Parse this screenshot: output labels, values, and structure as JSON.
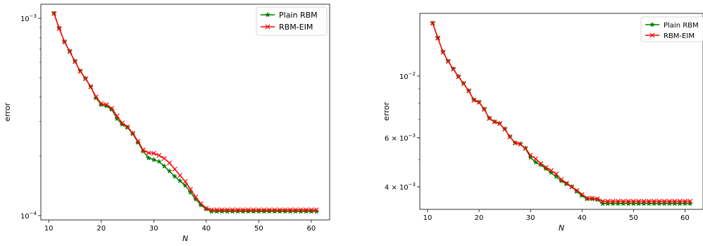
{
  "chart_data": [
    {
      "type": "line",
      "xlabel": "N",
      "ylabel": "error",
      "yscale": "log",
      "xlim": [
        8.5,
        63.5
      ],
      "ylim": [
        9.51e-05,
        0.00118
      ],
      "x_ticks": [
        10,
        20,
        30,
        40,
        50,
        60
      ],
      "y_ticks": [
        {
          "value": 0.001,
          "label": "10",
          "exp": "−3"
        },
        {
          "value": 0.0001,
          "label": "10",
          "exp": "−4"
        }
      ],
      "legend_position": "top-right",
      "x": [
        11,
        12,
        13,
        14,
        15,
        16,
        17,
        18,
        19,
        20,
        21,
        22,
        23,
        24,
        25,
        26,
        27,
        28,
        29,
        30,
        31,
        32,
        33,
        34,
        35,
        36,
        37,
        38,
        39,
        40,
        41,
        42,
        43,
        44,
        45,
        46,
        47,
        48,
        49,
        50,
        51,
        52,
        53,
        54,
        55,
        56,
        57,
        58,
        59,
        60,
        61
      ],
      "series": [
        {
          "name": "Plain RBM",
          "color": "#008000",
          "marker": "star",
          "values": [
            0.00106,
            0.00089,
            0.00076,
            0.00068,
            0.000605,
            0.00054,
            0.000495,
            0.00045,
            0.000395,
            0.000365,
            0.00036,
            0.000345,
            0.00031,
            0.00029,
            0.00028,
            0.00026,
            0.000235,
            0.000212,
            0.000196,
            0.000192,
            0.000188,
            0.000178,
            0.000168,
            0.000158,
            0.00015,
            0.000142,
            0.000131,
            0.000121,
            0.000113,
            0.000108,
            0.000105,
            0.000105,
            0.000105,
            0.000105,
            0.000105,
            0.000105,
            0.000105,
            0.000105,
            0.000105,
            0.000105,
            0.000105,
            0.000105,
            0.000105,
            0.000105,
            0.000105,
            0.000105,
            0.000105,
            0.000105,
            0.000105,
            0.000105,
            0.000105
          ]
        },
        {
          "name": "RBM-EIM",
          "color": "#ff0000",
          "marker": "x",
          "values": [
            0.00106,
            0.00089,
            0.00076,
            0.00068,
            0.000605,
            0.00054,
            0.000495,
            0.00045,
            0.0004,
            0.00037,
            0.000365,
            0.00035,
            0.00032,
            0.000295,
            0.000282,
            0.000262,
            0.000238,
            0.000215,
            0.000208,
            0.000207,
            0.000202,
            0.000195,
            0.000185,
            0.000172,
            0.00016,
            0.000149,
            0.000136,
            0.000124,
            0.000115,
            0.000109,
            0.000107,
            0.000107,
            0.000107,
            0.000107,
            0.000107,
            0.000107,
            0.000107,
            0.000107,
            0.000107,
            0.000107,
            0.000107,
            0.000107,
            0.000107,
            0.000107,
            0.000107,
            0.000107,
            0.000107,
            0.000107,
            0.000107,
            0.000107,
            0.000107
          ]
        }
      ]
    },
    {
      "type": "line",
      "xlabel": "N",
      "ylabel": "error",
      "yscale": "log",
      "xlim": [
        8.5,
        63.5
      ],
      "ylim": [
        0.00332,
        0.0168
      ],
      "x_ticks": [
        10,
        20,
        30,
        40,
        50,
        60
      ],
      "y_ticks": [
        {
          "value": 0.01,
          "label": "10",
          "exp": "−2"
        },
        {
          "value": 0.006,
          "label": "6 × 10",
          "exp": "−3"
        },
        {
          "value": 0.004,
          "label": "4 × 10",
          "exp": "−3"
        }
      ],
      "legend_position": "top-right",
      "x": [
        11,
        12,
        13,
        14,
        15,
        16,
        17,
        18,
        19,
        20,
        21,
        22,
        23,
        24,
        25,
        26,
        27,
        28,
        29,
        30,
        31,
        32,
        33,
        34,
        35,
        36,
        37,
        38,
        39,
        40,
        41,
        42,
        43,
        44,
        45,
        46,
        47,
        48,
        49,
        50,
        51,
        52,
        53,
        54,
        55,
        56,
        57,
        58,
        59,
        60,
        61
      ],
      "series": [
        {
          "name": "Plain RBM",
          "color": "#008000",
          "marker": "star",
          "values": [
            0.0155,
            0.0137,
            0.0122,
            0.0113,
            0.0106,
            0.00995,
            0.0094,
            0.00885,
            0.0082,
            0.00805,
            0.0076,
            0.00705,
            0.00685,
            0.00675,
            0.00645,
            0.00605,
            0.00575,
            0.0057,
            0.0055,
            0.0051,
            0.0049,
            0.0048,
            0.00465,
            0.0045,
            0.00435,
            0.0042,
            0.0041,
            0.004,
            0.00385,
            0.00372,
            0.00362,
            0.00362,
            0.0036,
            0.00348,
            0.00348,
            0.00348,
            0.00348,
            0.00348,
            0.00348,
            0.00348,
            0.00348,
            0.00348,
            0.00348,
            0.00348,
            0.00348,
            0.00348,
            0.00348,
            0.00348,
            0.00348,
            0.00348,
            0.00348
          ]
        },
        {
          "name": "RBM-EIM",
          "color": "#ff0000",
          "marker": "x",
          "values": [
            0.0155,
            0.0137,
            0.0122,
            0.0113,
            0.0106,
            0.00995,
            0.0094,
            0.00885,
            0.0082,
            0.00805,
            0.0076,
            0.00705,
            0.00685,
            0.00675,
            0.00645,
            0.00605,
            0.00575,
            0.0057,
            0.0055,
            0.0052,
            0.00505,
            0.00485,
            0.0047,
            0.00458,
            0.00445,
            0.00425,
            0.00412,
            0.004,
            0.00388,
            0.00376,
            0.00364,
            0.00364,
            0.00362,
            0.00355,
            0.00355,
            0.00355,
            0.00355,
            0.00355,
            0.00355,
            0.00355,
            0.00355,
            0.00355,
            0.00355,
            0.00355,
            0.00355,
            0.00355,
            0.00355,
            0.00355,
            0.00355,
            0.00355,
            0.00355
          ]
        }
      ]
    }
  ]
}
